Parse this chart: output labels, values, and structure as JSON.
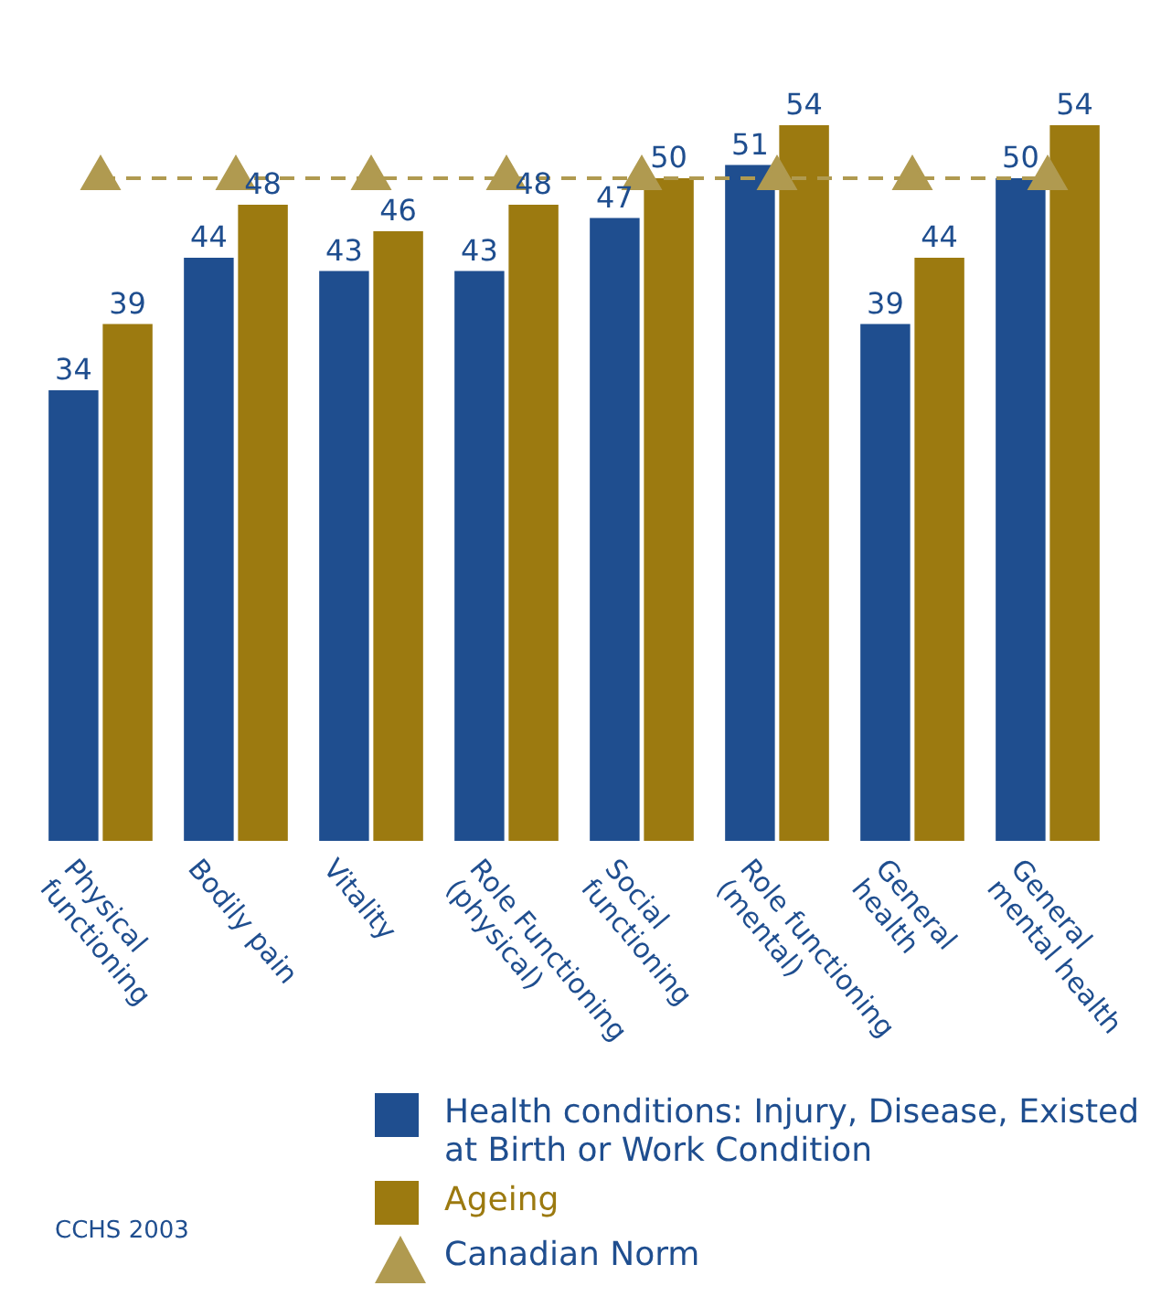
{
  "chart_data": {
    "type": "bar",
    "categories": [
      "Physical functioning",
      "Bodily pain",
      "Vitality",
      "Role Functioning (physical)",
      "Social functioning",
      "Role functioning (mental)",
      "General health",
      "General mental health"
    ],
    "series": [
      {
        "name": "Health conditions: Injury, Disease, Existed at Birth or Work Condition",
        "color": "#1f4e8f",
        "values": [
          34,
          44,
          43,
          43,
          47,
          51,
          39,
          50
        ],
        "value_labels": [
          "34",
          "44",
          "43",
          "43",
          "47",
          "51",
          "39",
          "50"
        ]
      },
      {
        "name": "Ageing",
        "color": "#9c7a10",
        "values": [
          39,
          48,
          46,
          48,
          50,
          54,
          44,
          54
        ],
        "value_labels": [
          "39",
          "48",
          "46",
          "48",
          "50",
          "54",
          "44",
          "54"
        ]
      },
      {
        "name": "Canadian Norm",
        "type": "line",
        "color": "#b09a50",
        "line_style": "dashed",
        "marker": "triangle",
        "values": [
          50,
          50,
          50,
          50,
          50,
          50,
          50,
          50
        ]
      }
    ],
    "tick_labels": "x",
    "grid": false,
    "legend": "bottom right",
    "annotations": [
      "CCHS 2003"
    ]
  }
}
